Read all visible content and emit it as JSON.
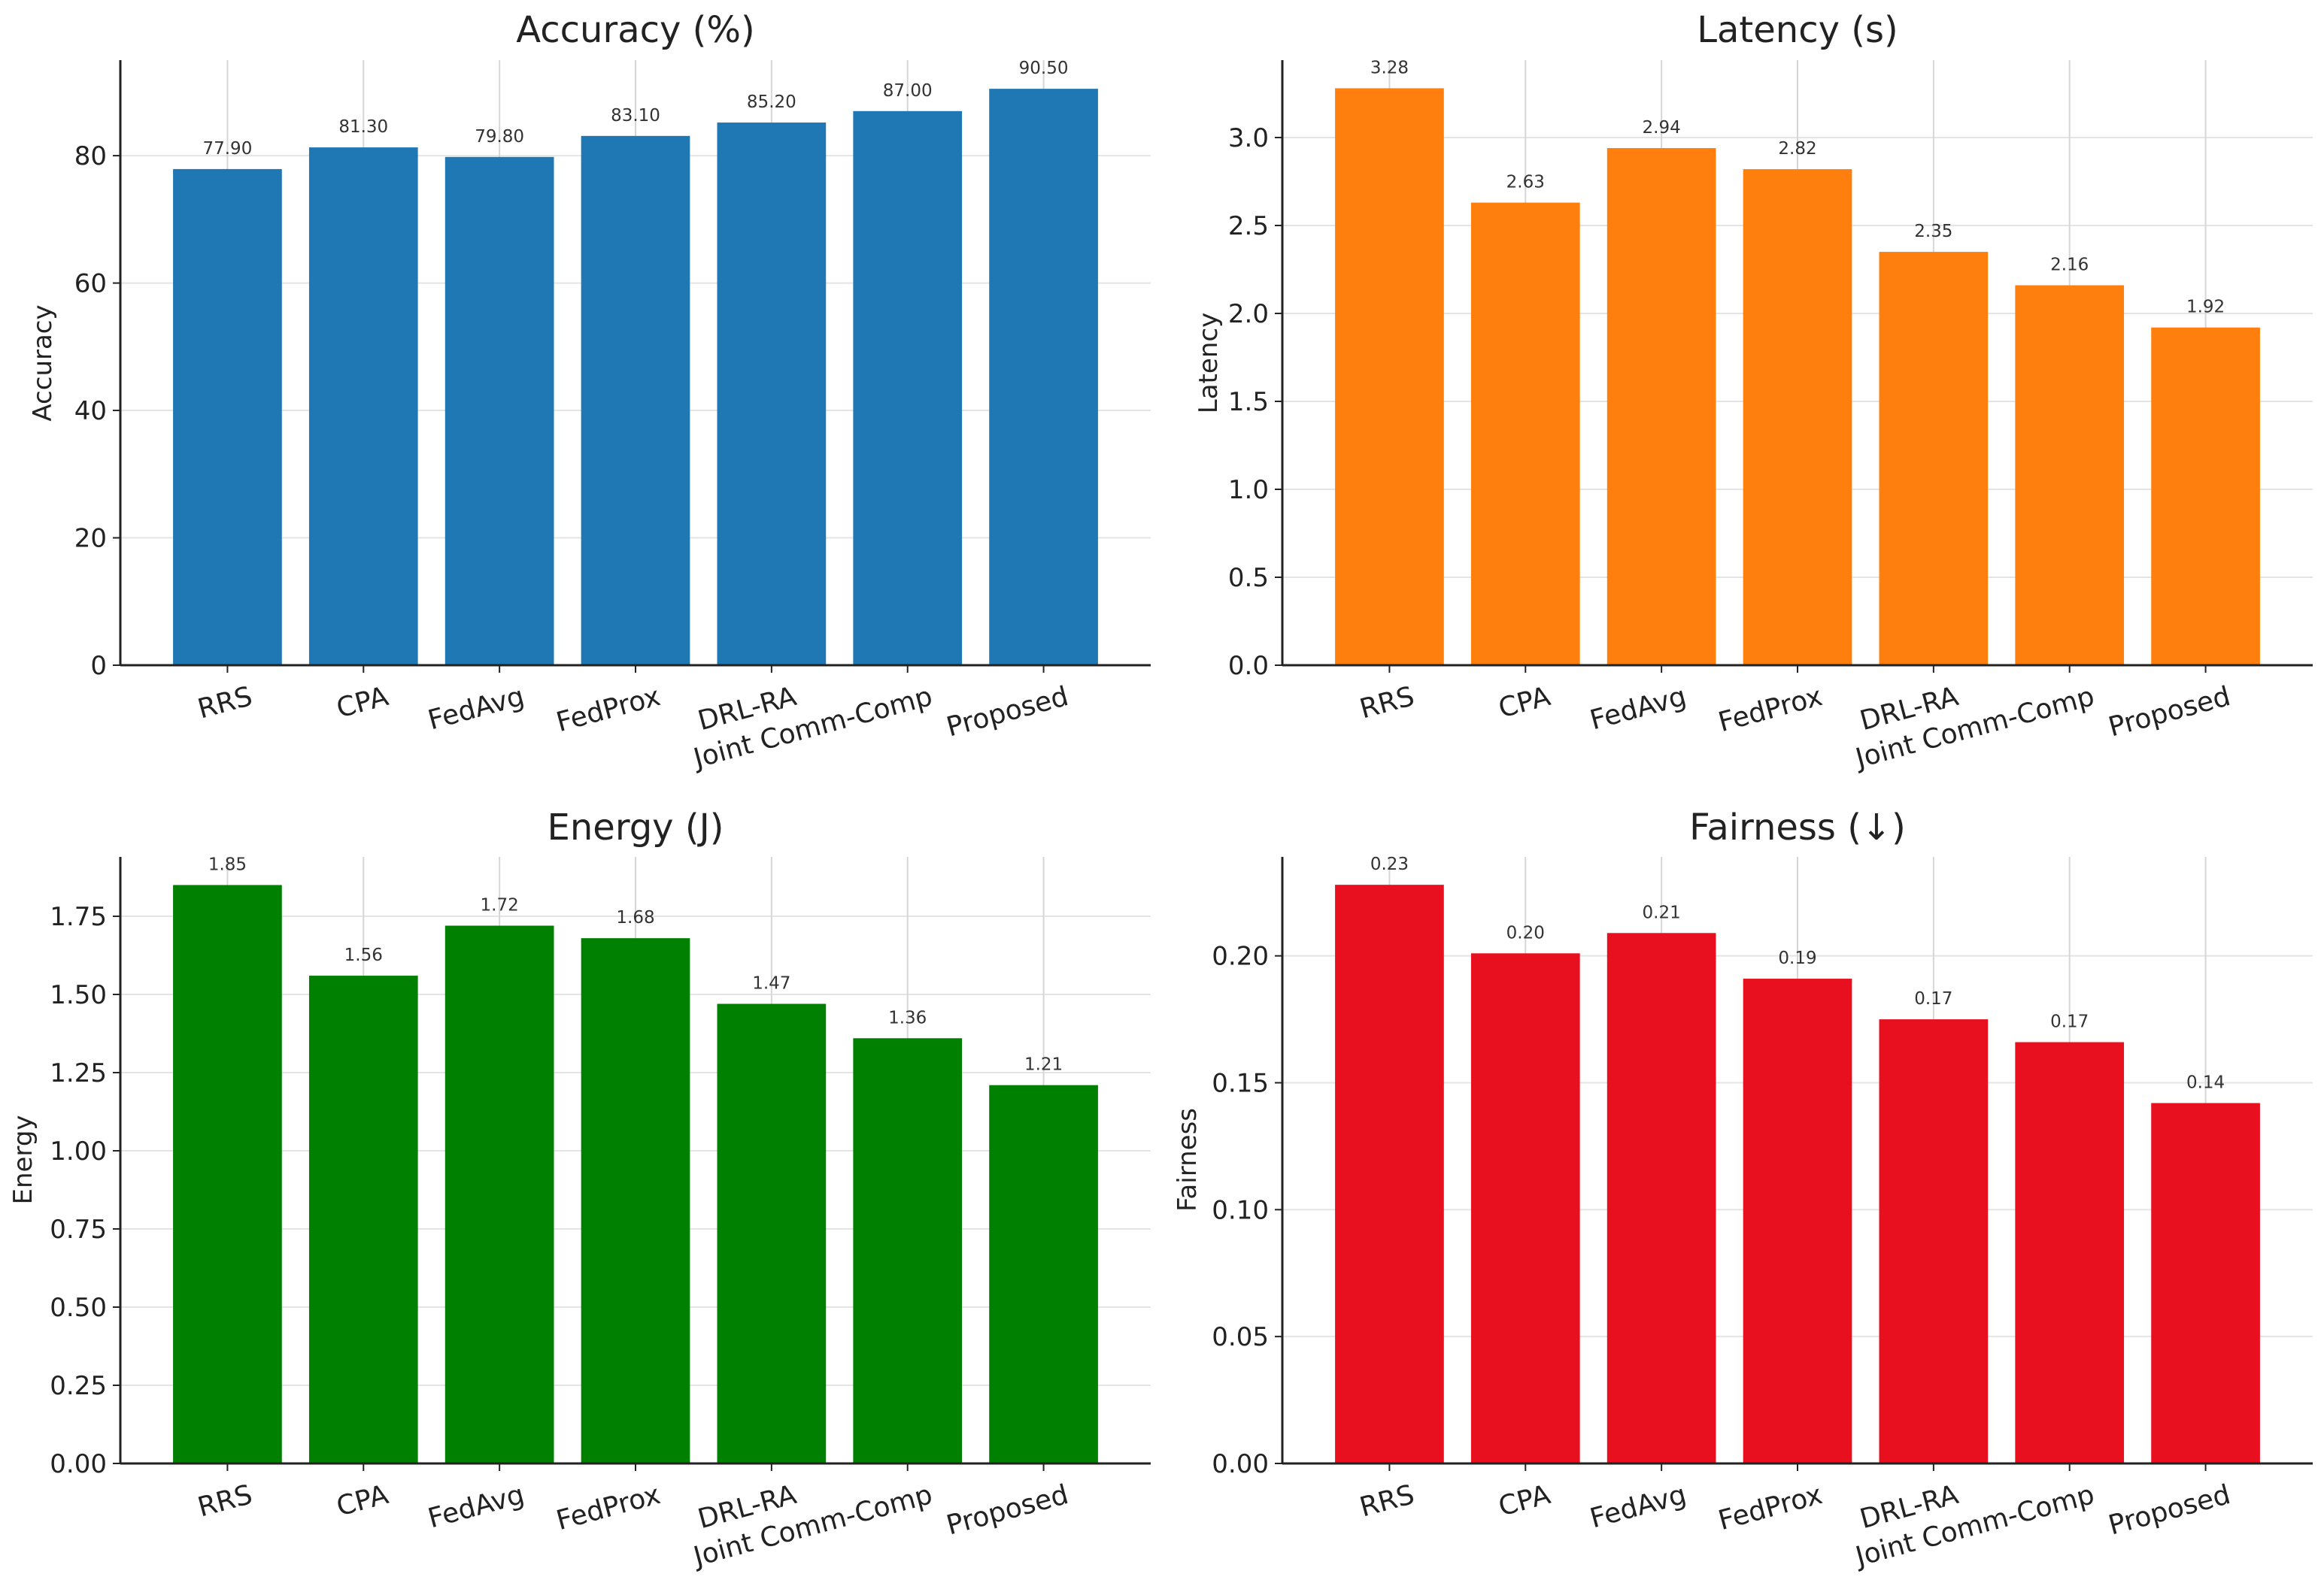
{
  "chart_data": [
    {
      "type": "bar",
      "title": "Accuracy (%)",
      "xlabel": "",
      "ylabel": "Accuracy",
      "categories": [
        "RRS",
        "CPA",
        "FedAvg",
        "FedProx",
        "DRL-RA",
        "Joint Comm-Comp",
        "Proposed"
      ],
      "values": [
        77.9,
        81.3,
        79.8,
        83.1,
        85.2,
        87.0,
        90.5
      ],
      "data_labels": [
        "77.90",
        "81.30",
        "79.80",
        "83.10",
        "85.20",
        "87.00",
        "90.50"
      ],
      "yticks": [
        0,
        20,
        40,
        60,
        80
      ],
      "ytick_labels": [
        "0",
        "20",
        "40",
        "60",
        "80"
      ],
      "ylim": [
        0,
        95.0
      ],
      "color": "#1f77b4",
      "grid": true
    },
    {
      "type": "bar",
      "title": "Latency (s)",
      "xlabel": "",
      "ylabel": "Latency",
      "categories": [
        "RRS",
        "CPA",
        "FedAvg",
        "FedProx",
        "DRL-RA",
        "Joint Comm-Comp",
        "Proposed"
      ],
      "values": [
        3.28,
        2.63,
        2.94,
        2.82,
        2.35,
        2.16,
        1.92
      ],
      "data_labels": [
        "3.28",
        "2.63",
        "2.94",
        "2.82",
        "2.35",
        "2.16",
        "1.92"
      ],
      "yticks": [
        0.0,
        0.5,
        1.0,
        1.5,
        2.0,
        2.5,
        3.0
      ],
      "ytick_labels": [
        "0.0",
        "0.5",
        "1.0",
        "1.5",
        "2.0",
        "2.5",
        "3.0"
      ],
      "ylim": [
        0,
        3.44
      ],
      "color": "#ff7f0e",
      "grid": true
    },
    {
      "type": "bar",
      "title": "Energy (J)",
      "xlabel": "",
      "ylabel": "Energy",
      "categories": [
        "RRS",
        "CPA",
        "FedAvg",
        "FedProx",
        "DRL-RA",
        "Joint Comm-Comp",
        "Proposed"
      ],
      "values": [
        1.85,
        1.56,
        1.72,
        1.68,
        1.47,
        1.36,
        1.21
      ],
      "data_labels": [
        "1.85",
        "1.56",
        "1.72",
        "1.68",
        "1.47",
        "1.36",
        "1.21"
      ],
      "yticks": [
        0.0,
        0.25,
        0.5,
        0.75,
        1.0,
        1.25,
        1.5,
        1.75
      ],
      "ytick_labels": [
        "0.00",
        "0.25",
        "0.50",
        "0.75",
        "1.00",
        "1.25",
        "1.50",
        "1.75"
      ],
      "ylim": [
        0,
        1.94
      ],
      "color": "#008000",
      "grid": true
    },
    {
      "type": "bar",
      "title": "Fairness (↓)",
      "xlabel": "",
      "ylabel": "Fairness",
      "categories": [
        "RRS",
        "CPA",
        "FedAvg",
        "FedProx",
        "DRL-RA",
        "Joint Comm-Comp",
        "Proposed"
      ],
      "values": [
        0.228,
        0.201,
        0.209,
        0.191,
        0.175,
        0.166,
        0.142
      ],
      "data_labels": [
        "0.23",
        "0.20",
        "0.21",
        "0.19",
        "0.17",
        "0.17",
        "0.14"
      ],
      "yticks": [
        0.0,
        0.05,
        0.1,
        0.15,
        0.2
      ],
      "ytick_labels": [
        "0.00",
        "0.05",
        "0.10",
        "0.15",
        "0.20"
      ],
      "ylim": [
        0,
        0.239
      ],
      "color": "#e8101e",
      "grid": true
    }
  ]
}
